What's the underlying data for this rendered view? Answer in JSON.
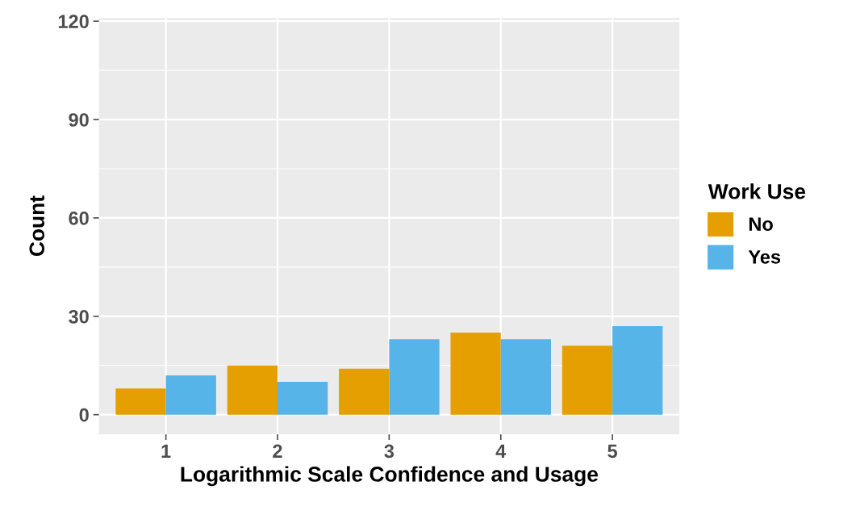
{
  "chart_data": {
    "type": "bar",
    "xlabel": "Logarithmic Scale Confidence and Usage",
    "ylabel": "Count",
    "legend_title": "Work Use",
    "categories": [
      "1",
      "2",
      "3",
      "4",
      "5"
    ],
    "series": [
      {
        "name": "No",
        "color": "#e69f00",
        "values": [
          8,
          15,
          14,
          25,
          21
        ]
      },
      {
        "name": "Yes",
        "color": "#56b4e9",
        "values": [
          12,
          10,
          23,
          23,
          27
        ]
      }
    ],
    "ylim": [
      -6,
      121
    ],
    "yticks": [
      0,
      30,
      60,
      90,
      120
    ],
    "grid": true,
    "legend": "right"
  }
}
